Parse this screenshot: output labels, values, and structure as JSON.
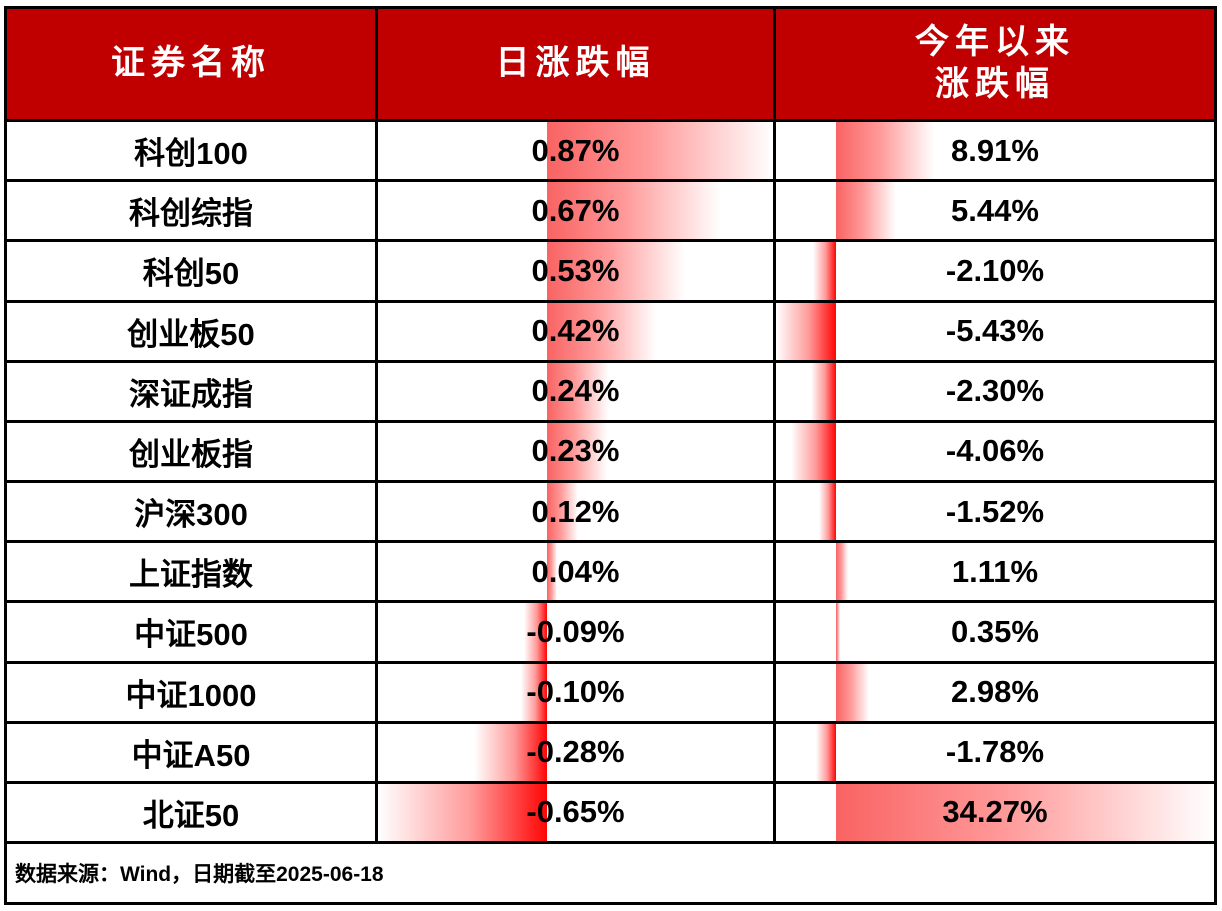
{
  "table": {
    "columns": [
      {
        "label": "证券名称"
      },
      {
        "label": "日涨跌幅"
      },
      {
        "label_line1": "今年以来",
        "label_line2": "涨跌幅"
      }
    ],
    "rows": [
      {
        "name": "科创100",
        "daily": "0.87%",
        "ytd": "8.91%"
      },
      {
        "name": "科创综指",
        "daily": "0.67%",
        "ytd": "5.44%"
      },
      {
        "name": "科创50",
        "daily": "0.53%",
        "ytd": "-2.10%"
      },
      {
        "name": "创业板50",
        "daily": "0.42%",
        "ytd": "-5.43%"
      },
      {
        "name": "深证成指",
        "daily": "0.24%",
        "ytd": "-2.30%"
      },
      {
        "name": "创业板指",
        "daily": "0.23%",
        "ytd": "-4.06%"
      },
      {
        "name": "沪深300",
        "daily": "0.12%",
        "ytd": "-1.52%"
      },
      {
        "name": "上证指数",
        "daily": "0.04%",
        "ytd": "1.11%"
      },
      {
        "name": "中证500",
        "daily": "-0.09%",
        "ytd": "0.35%"
      },
      {
        "name": "中证1000",
        "daily": "-0.10%",
        "ytd": "2.98%"
      },
      {
        "name": "中证A50",
        "daily": "-0.28%",
        "ytd": "-1.78%"
      },
      {
        "name": "北证50",
        "daily": "-0.65%",
        "ytd": "34.27%"
      }
    ]
  },
  "footer": {
    "note": "数据来源：Wind，日期截至2025-06-18"
  },
  "colors": {
    "header_bg": "#c00000",
    "header_text": "#ffffff",
    "border": "#000000",
    "text": "#000000",
    "bar_positive": "#f96363",
    "bar_negative": "#ff0505"
  },
  "chart_data": {
    "type": "table",
    "title": "",
    "columns": [
      "证券名称",
      "日涨跌幅",
      "今年以来涨跌幅"
    ],
    "categories": [
      "科创100",
      "科创综指",
      "科创50",
      "创业板50",
      "深证成指",
      "创业板指",
      "沪深300",
      "上证指数",
      "中证500",
      "中证1000",
      "中证A50",
      "北证50"
    ],
    "series": [
      {
        "name": "日涨跌幅",
        "unit": "%",
        "values": [
          0.87,
          0.67,
          0.53,
          0.42,
          0.24,
          0.23,
          0.12,
          0.04,
          -0.09,
          -0.1,
          -0.28,
          -0.65
        ],
        "bar_scale": {
          "min": -0.65,
          "max": 0.87
        }
      },
      {
        "name": "今年以来涨跌幅",
        "unit": "%",
        "values": [
          8.91,
          5.44,
          -2.1,
          -5.43,
          -2.3,
          -4.06,
          -1.52,
          1.11,
          0.35,
          2.98,
          -1.78,
          34.27
        ],
        "bar_scale": {
          "min": -5.43,
          "max": 34.27
        }
      }
    ],
    "bar_style": "gradient red data bars, solid at zero-axis fading to white at bar tip",
    "note": "数据来源：Wind，日期截至2025-06-18"
  }
}
